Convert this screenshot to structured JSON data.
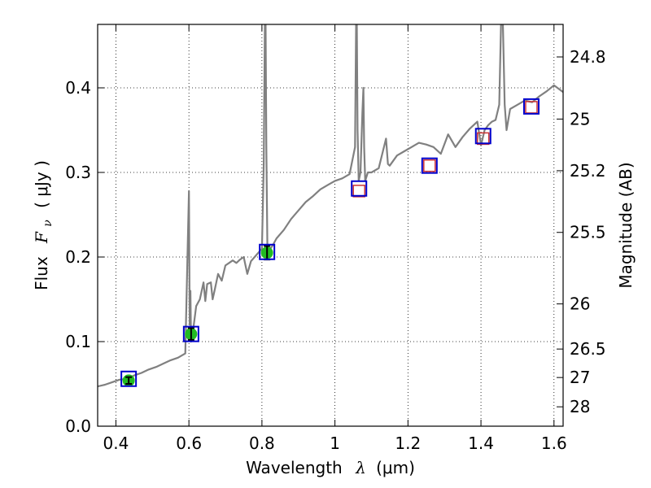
{
  "chart_data": {
    "type": "line",
    "title": "",
    "xlabel": "Wavelength",
    "xlabel_symbol": "λ",
    "xlabel_unit": "(μm)",
    "ylabel": "Flux",
    "ylabel_symbol": "F",
    "ylabel_subscript": "ν",
    "ylabel_unit": "( μJy )",
    "y2label": "Magnitude (AB)",
    "xlim": [
      0.35,
      1.625
    ],
    "ylim": [
      0.0,
      0.475
    ],
    "grid": true,
    "x_ticks": [
      0.4,
      0.6,
      0.8,
      1.0,
      1.2,
      1.4,
      1.6
    ],
    "x_tick_labels": [
      "0.4",
      "0.6",
      "0.8",
      "1",
      "1.2",
      "1.4",
      "1.6"
    ],
    "y_ticks": [
      0.0,
      0.1,
      0.2,
      0.3,
      0.4
    ],
    "y_tick_labels": [
      "0.0",
      "0.1",
      "0.2",
      "0.3",
      "0.4"
    ],
    "mag_ticks": [
      24.8,
      25,
      25.2,
      25.5,
      26,
      26.5,
      27,
      28
    ],
    "mag_tick_labels": [
      "24.8",
      "25",
      "25.2",
      "25.5",
      "26",
      "26.5",
      "27",
      "28"
    ],
    "colors": {
      "spectrum": "#808080",
      "model_box": "#0000cc",
      "upper_limit_box": "#cc3333",
      "detection_fill": "#22bb22"
    },
    "spectrum": {
      "x": [
        0.35,
        0.37,
        0.39,
        0.41,
        0.43,
        0.45,
        0.47,
        0.49,
        0.51,
        0.53,
        0.55,
        0.57,
        0.59,
        0.6,
        0.602,
        0.604,
        0.606,
        0.61,
        0.62,
        0.63,
        0.64,
        0.645,
        0.65,
        0.66,
        0.665,
        0.67,
        0.68,
        0.69,
        0.7,
        0.71,
        0.72,
        0.73,
        0.74,
        0.75,
        0.76,
        0.77,
        0.78,
        0.79,
        0.8,
        0.805,
        0.808,
        0.81,
        0.812,
        0.815,
        0.82,
        0.83,
        0.84,
        0.86,
        0.88,
        0.9,
        0.92,
        0.94,
        0.96,
        0.98,
        1.0,
        1.02,
        1.04,
        1.055,
        1.058,
        1.06,
        1.062,
        1.065,
        1.07,
        1.075,
        1.078,
        1.08,
        1.083,
        1.09,
        1.1,
        1.12,
        1.14,
        1.145,
        1.15,
        1.17,
        1.19,
        1.21,
        1.23,
        1.25,
        1.27,
        1.29,
        1.31,
        1.33,
        1.35,
        1.37,
        1.39,
        1.4,
        1.41,
        1.42,
        1.43,
        1.44,
        1.45,
        1.455,
        1.46,
        1.465,
        1.47,
        1.48,
        1.5,
        1.52,
        1.54,
        1.56,
        1.58,
        1.6,
        1.625
      ],
      "y": [
        0.047,
        0.049,
        0.052,
        0.055,
        0.056,
        0.06,
        0.063,
        0.067,
        0.07,
        0.074,
        0.078,
        0.081,
        0.086,
        0.278,
        0.12,
        0.16,
        0.1,
        0.108,
        0.142,
        0.15,
        0.17,
        0.148,
        0.168,
        0.17,
        0.15,
        0.16,
        0.18,
        0.172,
        0.19,
        0.193,
        0.196,
        0.193,
        0.197,
        0.2,
        0.18,
        0.195,
        0.2,
        0.205,
        0.21,
        0.31,
        0.475,
        0.475,
        0.33,
        0.21,
        0.208,
        0.214,
        0.222,
        0.232,
        0.245,
        0.255,
        0.265,
        0.272,
        0.28,
        0.285,
        0.29,
        0.293,
        0.298,
        0.33,
        0.475,
        0.475,
        0.35,
        0.29,
        0.3,
        0.37,
        0.4,
        0.33,
        0.29,
        0.3,
        0.3,
        0.305,
        0.34,
        0.31,
        0.308,
        0.32,
        0.325,
        0.33,
        0.335,
        0.333,
        0.33,
        0.322,
        0.345,
        0.33,
        0.342,
        0.352,
        0.36,
        0.332,
        0.35,
        0.356,
        0.36,
        0.362,
        0.38,
        0.475,
        0.475,
        0.38,
        0.35,
        0.375,
        0.38,
        0.385,
        0.383,
        0.39,
        0.396,
        0.403,
        0.395
      ]
    },
    "photometry": {
      "x": [
        0.435,
        0.606,
        0.814,
        1.066,
        1.259,
        1.406,
        1.538
      ],
      "model_flux": [
        0.056,
        0.109,
        0.206,
        0.281,
        0.308,
        0.343,
        0.378
      ],
      "observed_flux": [
        0.054,
        0.109,
        0.205,
        0.278,
        0.308,
        0.34,
        0.377
      ],
      "detected": [
        true,
        true,
        true,
        false,
        false,
        false,
        false
      ],
      "error": [
        0.004,
        0.007,
        0.008,
        0.0,
        0.0,
        0.0,
        0.0
      ]
    }
  }
}
